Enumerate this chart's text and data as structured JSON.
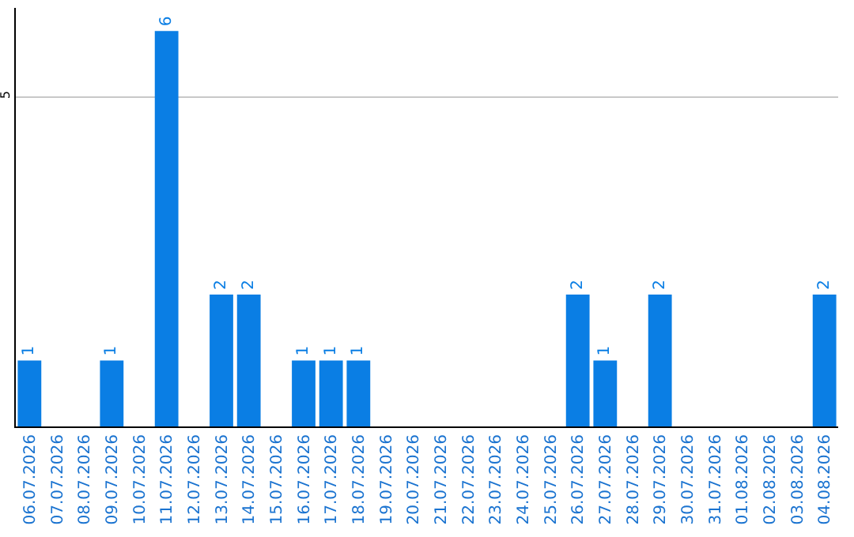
{
  "chart_data": {
    "type": "bar",
    "categories": [
      "06.07.2026",
      "07.07.2026",
      "08.07.2026",
      "09.07.2026",
      "10.07.2026",
      "11.07.2026",
      "12.07.2026",
      "13.07.2026",
      "14.07.2026",
      "15.07.2026",
      "16.07.2026",
      "17.07.2026",
      "18.07.2026",
      "19.07.2026",
      "20.07.2026",
      "21.07.2026",
      "22.07.2026",
      "23.07.2026",
      "24.07.2026",
      "25.07.2026",
      "26.07.2026",
      "27.07.2026",
      "28.07.2026",
      "29.07.2026",
      "30.07.2026",
      "31.07.2026",
      "01.08.2026",
      "02.08.2026",
      "03.08.2026",
      "04.08.2026"
    ],
    "values": [
      1,
      0,
      0,
      1,
      0,
      6,
      0,
      2,
      2,
      0,
      1,
      1,
      1,
      0,
      0,
      0,
      0,
      0,
      0,
      0,
      2,
      1,
      0,
      2,
      0,
      0,
      0,
      0,
      0,
      2
    ],
    "value_labels": [
      "1",
      null,
      null,
      "1",
      null,
      "6",
      null,
      "2",
      "2",
      null,
      "1",
      "1",
      "1",
      null,
      null,
      null,
      null,
      null,
      null,
      null,
      "2",
      "1",
      null,
      "2",
      null,
      null,
      null,
      null,
      null,
      "2"
    ],
    "color": "#0a7ee4",
    "ylim": [
      0,
      6.35
    ],
    "yticks": [
      5
    ],
    "grid": "y"
  }
}
